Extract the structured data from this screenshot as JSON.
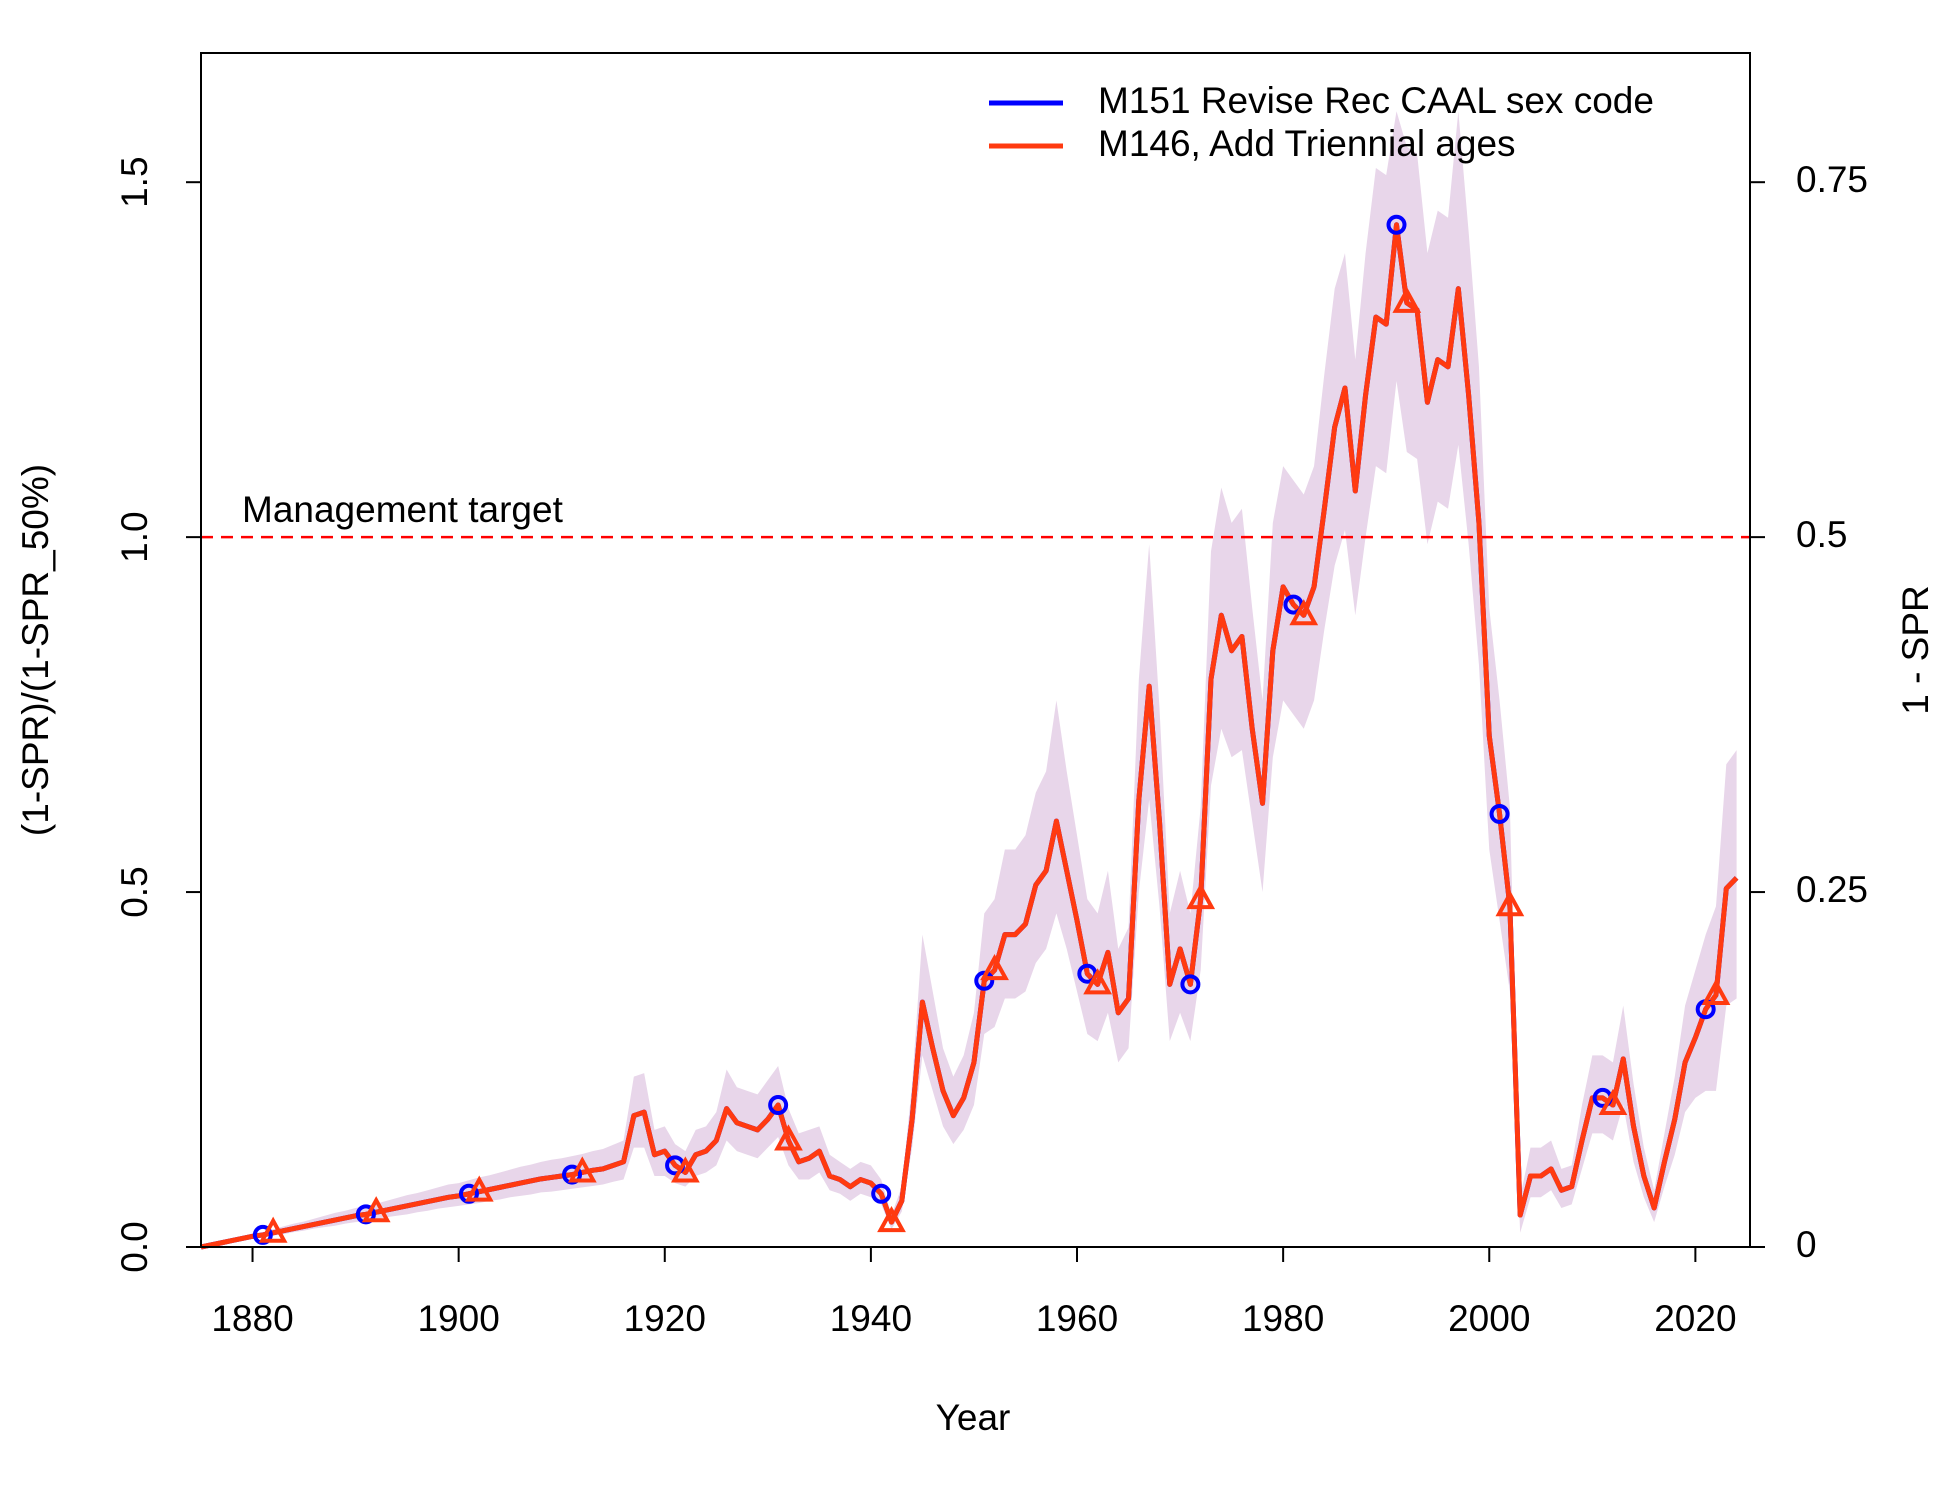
{
  "chart_data": {
    "type": "line",
    "xlabel": "Year",
    "ylabel": "(1-SPR)/(1-SPR_50%)",
    "y2label": "1 - SPR",
    "xlim": [
      1875,
      2025.3
    ],
    "xticks": [
      1880,
      1900,
      1920,
      1940,
      1960,
      1980,
      2000,
      2020
    ],
    "ylim": [
      0,
      1.682
    ],
    "yticks": [
      {
        "value": 0,
        "label": "0.0"
      },
      0.5,
      {
        "value": 1,
        "label": "1.0"
      },
      1.5
    ],
    "y2lim": [
      0,
      0.841
    ],
    "y2ticks": [
      0,
      0.25,
      0.5,
      0.75
    ],
    "legend": "topright",
    "hline": {
      "value": 1,
      "label": "Management target",
      "color": "#ff0000"
    },
    "band_color": "#e8d6ea",
    "x": [
      1875,
      1876,
      1877,
      1878,
      1879,
      1880,
      1881,
      1882,
      1883,
      1884,
      1885,
      1886,
      1887,
      1888,
      1889,
      1890,
      1891,
      1892,
      1893,
      1894,
      1895,
      1896,
      1897,
      1898,
      1899,
      1900,
      1901,
      1902,
      1903,
      1904,
      1905,
      1906,
      1907,
      1908,
      1909,
      1910,
      1911,
      1912,
      1913,
      1914,
      1915,
      1916,
      1917,
      1918,
      1919,
      1920,
      1921,
      1922,
      1923,
      1924,
      1925,
      1926,
      1927,
      1928,
      1929,
      1930,
      1931,
      1932,
      1933,
      1934,
      1935,
      1936,
      1937,
      1938,
      1939,
      1940,
      1941,
      1942,
      1943,
      1944,
      1945,
      1946,
      1947,
      1948,
      1949,
      1950,
      1951,
      1952,
      1953,
      1954,
      1955,
      1956,
      1957,
      1958,
      1959,
      1960,
      1961,
      1962,
      1963,
      1964,
      1965,
      1966,
      1967,
      1968,
      1969,
      1970,
      1971,
      1972,
      1973,
      1974,
      1975,
      1976,
      1977,
      1978,
      1979,
      1980,
      1981,
      1982,
      1983,
      1984,
      1985,
      1986,
      1987,
      1988,
      1989,
      1990,
      1991,
      1992,
      1993,
      1994,
      1995,
      1996,
      1997,
      1998,
      1999,
      2000,
      2001,
      2002,
      2003,
      2004,
      2005,
      2006,
      2007,
      2008,
      2009,
      2010,
      2011,
      2012,
      2013,
      2014,
      2015,
      2016,
      2017,
      2018,
      2019,
      2020,
      2021,
      2022,
      2023,
      2024
    ],
    "series": [
      {
        "name": "M151 Revise Rec CAAL sex code",
        "color": "#0000ff",
        "markers": {
          "shape": "circle",
          "x": [
            1881,
            1891,
            1901,
            1911,
            1921,
            1931,
            1941,
            1951,
            1961,
            1971,
            1981,
            1991,
            2001,
            2011,
            2021
          ]
        },
        "values": [
          0,
          0.003,
          0.006,
          0.009,
          0.012,
          0.015,
          0.017,
          0.02,
          0.023,
          0.026,
          0.029,
          0.032,
          0.035,
          0.038,
          0.041,
          0.044,
          0.046,
          0.049,
          0.052,
          0.055,
          0.058,
          0.061,
          0.064,
          0.067,
          0.07,
          0.072,
          0.075,
          0.078,
          0.081,
          0.084,
          0.087,
          0.09,
          0.093,
          0.096,
          0.098,
          0.1,
          0.102,
          0.105,
          0.108,
          0.11,
          0.115,
          0.12,
          0.185,
          0.19,
          0.13,
          0.135,
          0.115,
          0.105,
          0.13,
          0.135,
          0.15,
          0.195,
          0.175,
          0.17,
          0.165,
          0.18,
          0.2,
          0.15,
          0.12,
          0.125,
          0.135,
          0.1,
          0.095,
          0.085,
          0.095,
          0.09,
          0.075,
          0.035,
          0.065,
          0.18,
          0.345,
          0.28,
          0.22,
          0.185,
          0.21,
          0.26,
          0.375,
          0.39,
          0.44,
          0.44,
          0.455,
          0.51,
          0.53,
          0.6,
          0.53,
          0.46,
          0.385,
          0.37,
          0.415,
          0.33,
          0.35,
          0.63,
          0.79,
          0.6,
          0.37,
          0.42,
          0.37,
          0.49,
          0.8,
          0.89,
          0.84,
          0.86,
          0.73,
          0.625,
          0.84,
          0.93,
          0.905,
          0.89,
          0.93,
          1.04,
          1.155,
          1.21,
          1.065,
          1.2,
          1.31,
          1.3,
          1.44,
          1.33,
          1.32,
          1.19,
          1.25,
          1.24,
          1.35,
          1.2,
          1.02,
          0.72,
          0.61,
          0.48,
          0.045,
          0.1,
          0.1,
          0.11,
          0.08,
          0.085,
          0.15,
          0.21,
          0.21,
          0.2,
          0.265,
          0.17,
          0.1,
          0.055,
          0.12,
          0.18,
          0.26,
          0.295,
          0.335,
          0.355,
          0.505,
          0.52
        ]
      },
      {
        "name": "M146, Add Triennial ages",
        "color": "#ff3a10",
        "markers": {
          "shape": "triangle",
          "x": [
            1882,
            1892,
            1902,
            1912,
            1922,
            1932,
            1942,
            1952,
            1962,
            1972,
            1982,
            1992,
            2002,
            2012,
            2022
          ]
        },
        "values": [
          0,
          0.003,
          0.006,
          0.009,
          0.012,
          0.015,
          0.017,
          0.02,
          0.023,
          0.026,
          0.029,
          0.032,
          0.035,
          0.038,
          0.041,
          0.044,
          0.046,
          0.049,
          0.052,
          0.055,
          0.058,
          0.061,
          0.064,
          0.067,
          0.07,
          0.072,
          0.075,
          0.078,
          0.081,
          0.084,
          0.087,
          0.09,
          0.093,
          0.096,
          0.098,
          0.1,
          0.102,
          0.105,
          0.108,
          0.11,
          0.115,
          0.12,
          0.185,
          0.19,
          0.13,
          0.135,
          0.115,
          0.105,
          0.13,
          0.135,
          0.15,
          0.195,
          0.175,
          0.17,
          0.165,
          0.18,
          0.2,
          0.15,
          0.12,
          0.125,
          0.135,
          0.1,
          0.095,
          0.085,
          0.095,
          0.09,
          0.075,
          0.035,
          0.065,
          0.18,
          0.345,
          0.28,
          0.22,
          0.185,
          0.21,
          0.26,
          0.375,
          0.39,
          0.44,
          0.44,
          0.455,
          0.51,
          0.53,
          0.6,
          0.53,
          0.46,
          0.385,
          0.37,
          0.415,
          0.33,
          0.35,
          0.63,
          0.79,
          0.6,
          0.37,
          0.42,
          0.37,
          0.49,
          0.8,
          0.89,
          0.84,
          0.86,
          0.73,
          0.625,
          0.84,
          0.93,
          0.905,
          0.89,
          0.93,
          1.04,
          1.155,
          1.21,
          1.065,
          1.2,
          1.31,
          1.3,
          1.44,
          1.33,
          1.32,
          1.19,
          1.25,
          1.24,
          1.35,
          1.2,
          1.02,
          0.72,
          0.61,
          0.48,
          0.045,
          0.1,
          0.1,
          0.11,
          0.08,
          0.085,
          0.15,
          0.21,
          0.21,
          0.2,
          0.265,
          0.17,
          0.1,
          0.055,
          0.12,
          0.18,
          0.26,
          0.295,
          0.335,
          0.355,
          0.505,
          0.52
        ],
        "lower": [
          0,
          0.002,
          0.005,
          0.007,
          0.01,
          0.012,
          0.014,
          0.016,
          0.018,
          0.021,
          0.023,
          0.026,
          0.028,
          0.03,
          0.033,
          0.035,
          0.037,
          0.039,
          0.042,
          0.044,
          0.046,
          0.049,
          0.051,
          0.054,
          0.056,
          0.058,
          0.06,
          0.062,
          0.065,
          0.067,
          0.07,
          0.072,
          0.074,
          0.077,
          0.078,
          0.08,
          0.082,
          0.084,
          0.086,
          0.088,
          0.092,
          0.095,
          0.14,
          0.14,
          0.1,
          0.1,
          0.09,
          0.085,
          0.1,
          0.105,
          0.115,
          0.15,
          0.135,
          0.13,
          0.125,
          0.14,
          0.155,
          0.115,
          0.095,
          0.095,
          0.105,
          0.08,
          0.075,
          0.065,
          0.075,
          0.07,
          0.06,
          0.025,
          0.05,
          0.14,
          0.27,
          0.22,
          0.17,
          0.145,
          0.165,
          0.2,
          0.3,
          0.31,
          0.35,
          0.35,
          0.36,
          0.4,
          0.42,
          0.47,
          0.42,
          0.36,
          0.3,
          0.29,
          0.33,
          0.26,
          0.28,
          0.5,
          0.63,
          0.48,
          0.29,
          0.33,
          0.29,
          0.39,
          0.65,
          0.73,
          0.69,
          0.7,
          0.6,
          0.5,
          0.69,
          0.77,
          0.75,
          0.73,
          0.77,
          0.87,
          0.96,
          1.01,
          0.89,
          1.0,
          1.1,
          1.09,
          1.22,
          1.12,
          1.11,
          0.99,
          1.05,
          1.04,
          1.13,
          0.99,
          0.82,
          0.56,
          0.46,
          0.36,
          0.02,
          0.07,
          0.07,
          0.08,
          0.055,
          0.06,
          0.11,
          0.16,
          0.16,
          0.15,
          0.2,
          0.12,
          0.07,
          0.035,
          0.085,
          0.13,
          0.19,
          0.21,
          0.22,
          0.22,
          0.34,
          0.35
        ],
        "upper": [
          0,
          0.004,
          0.008,
          0.011,
          0.015,
          0.019,
          0.021,
          0.025,
          0.029,
          0.033,
          0.036,
          0.04,
          0.044,
          0.048,
          0.051,
          0.055,
          0.058,
          0.061,
          0.065,
          0.069,
          0.073,
          0.076,
          0.08,
          0.084,
          0.088,
          0.09,
          0.094,
          0.098,
          0.101,
          0.105,
          0.109,
          0.113,
          0.116,
          0.12,
          0.123,
          0.125,
          0.128,
          0.131,
          0.135,
          0.138,
          0.144,
          0.15,
          0.24,
          0.245,
          0.165,
          0.17,
          0.145,
          0.135,
          0.165,
          0.17,
          0.19,
          0.25,
          0.225,
          0.22,
          0.215,
          0.235,
          0.255,
          0.195,
          0.16,
          0.165,
          0.17,
          0.13,
          0.12,
          0.11,
          0.12,
          0.115,
          0.095,
          0.045,
          0.085,
          0.23,
          0.44,
          0.36,
          0.28,
          0.24,
          0.27,
          0.33,
          0.47,
          0.49,
          0.56,
          0.56,
          0.58,
          0.64,
          0.67,
          0.77,
          0.67,
          0.58,
          0.49,
          0.47,
          0.53,
          0.42,
          0.45,
          0.8,
          0.99,
          0.76,
          0.47,
          0.53,
          0.47,
          0.62,
          0.98,
          1.07,
          1.02,
          1.04,
          0.9,
          0.77,
          1.02,
          1.1,
          1.08,
          1.06,
          1.1,
          1.23,
          1.35,
          1.4,
          1.25,
          1.4,
          1.52,
          1.51,
          1.6,
          1.55,
          1.54,
          1.4,
          1.46,
          1.45,
          1.6,
          1.43,
          1.24,
          0.9,
          0.77,
          0.62,
          0.07,
          0.14,
          0.14,
          0.15,
          0.11,
          0.115,
          0.2,
          0.27,
          0.27,
          0.26,
          0.34,
          0.23,
          0.14,
          0.08,
          0.16,
          0.24,
          0.34,
          0.39,
          0.44,
          0.48,
          0.68,
          0.7
        ]
      }
    ]
  }
}
